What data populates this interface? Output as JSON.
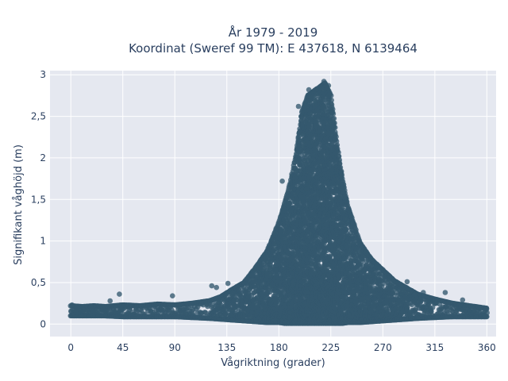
{
  "chart_data": {
    "type": "scatter",
    "title_line1": "År 1979 - 2019",
    "title_line2": "Koordinat (Sweref 99 TM): E 437618, N 6139464",
    "xlabel": "Vågriktning (grader)",
    "ylabel": "Signifikant våghöjd (m)",
    "xlim": [
      -18,
      368
    ],
    "ylim": [
      -0.15,
      3.05
    ],
    "xticks": [
      0,
      45,
      90,
      135,
      180,
      225,
      270,
      315,
      360
    ],
    "xtick_labels": [
      "0",
      "45",
      "90",
      "135",
      "180",
      "225",
      "270",
      "315",
      "360"
    ],
    "yticks": [
      0,
      0.5,
      1,
      1.5,
      2,
      2.5,
      3
    ],
    "ytick_labels": [
      "0",
      "0,5",
      "1",
      "1,5",
      "2",
      "2,5",
      "3"
    ],
    "grid": true,
    "marker_color": "#34586e",
    "plot_background": "#e5e8f0",
    "envelope": {
      "x": [
        0,
        10,
        20,
        30,
        45,
        60,
        75,
        90,
        105,
        120,
        130,
        140,
        150,
        160,
        170,
        180,
        185,
        190,
        195,
        200,
        205,
        210,
        215,
        220,
        225,
        230,
        235,
        240,
        245,
        250,
        260,
        270,
        280,
        290,
        300,
        315,
        330,
        345,
        360
      ],
      "ymax": [
        0.22,
        0.21,
        0.22,
        0.21,
        0.23,
        0.22,
        0.24,
        0.23,
        0.25,
        0.28,
        0.33,
        0.42,
        0.5,
        0.68,
        0.88,
        1.22,
        1.45,
        1.7,
        2.05,
        2.55,
        2.75,
        2.8,
        2.85,
        2.9,
        2.75,
        2.2,
        1.75,
        1.4,
        1.2,
        0.98,
        0.78,
        0.65,
        0.52,
        0.44,
        0.36,
        0.3,
        0.25,
        0.22,
        0.19
      ],
      "ymin": [
        0.1,
        0.1,
        0.1,
        0.1,
        0.09,
        0.09,
        0.09,
        0.09,
        0.08,
        0.07,
        0.06,
        0.05,
        0.04,
        0.03,
        0.02,
        0.02,
        0.01,
        0.01,
        0.01,
        0.01,
        0.01,
        0.01,
        0.01,
        0.01,
        0.01,
        0.01,
        0.01,
        0.02,
        0.02,
        0.02,
        0.03,
        0.04,
        0.05,
        0.06,
        0.07,
        0.08,
        0.09,
        0.09,
        0.09
      ]
    },
    "outliers": [
      {
        "x": 1,
        "y": 0.23
      },
      {
        "x": 5,
        "y": 0.2
      },
      {
        "x": 34,
        "y": 0.28
      },
      {
        "x": 42,
        "y": 0.36
      },
      {
        "x": 88,
        "y": 0.34
      },
      {
        "x": 122,
        "y": 0.46
      },
      {
        "x": 126,
        "y": 0.44
      },
      {
        "x": 136,
        "y": 0.49
      },
      {
        "x": 157,
        "y": 0.59
      },
      {
        "x": 183,
        "y": 1.72
      },
      {
        "x": 197,
        "y": 2.62
      },
      {
        "x": 206,
        "y": 2.82
      },
      {
        "x": 219,
        "y": 2.92
      },
      {
        "x": 223,
        "y": 2.87
      },
      {
        "x": 249,
        "y": 0.88
      },
      {
        "x": 265,
        "y": 0.72
      },
      {
        "x": 291,
        "y": 0.51
      },
      {
        "x": 298,
        "y": 0.36
      },
      {
        "x": 305,
        "y": 0.38
      },
      {
        "x": 324,
        "y": 0.38
      },
      {
        "x": 339,
        "y": 0.29
      },
      {
        "x": 358,
        "y": 0.16
      }
    ]
  }
}
